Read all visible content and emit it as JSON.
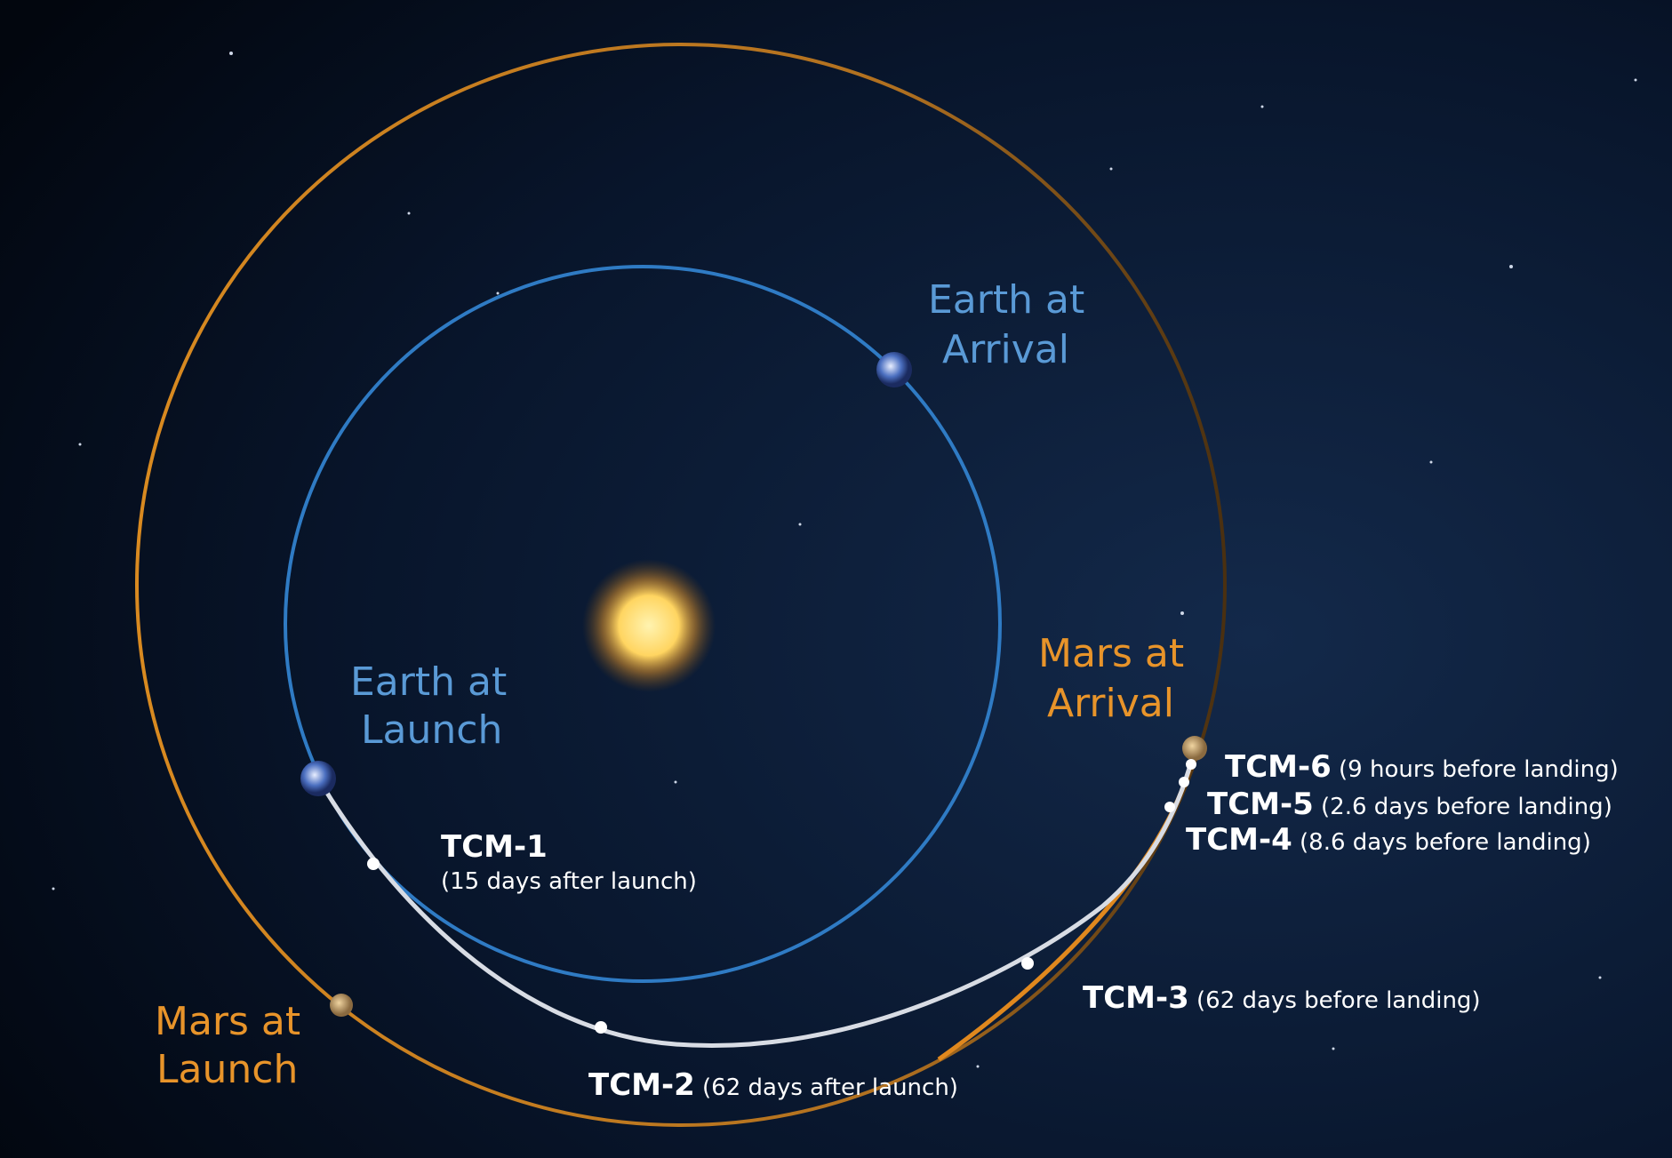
{
  "labels": {
    "earth_arrival": [
      "Earth at",
      "Arrival"
    ],
    "earth_launch": [
      "Earth at",
      "Launch"
    ],
    "mars_arrival": [
      "Mars at",
      "Arrival"
    ],
    "mars_launch": [
      "Mars at",
      "Launch"
    ]
  },
  "tcm": [
    {
      "name": "TCM-1",
      "detail": "(15 days after launch)"
    },
    {
      "name": "TCM-2",
      "detail": "(62 days after launch)"
    },
    {
      "name": "TCM-3",
      "detail": "(62 days before landing)"
    },
    {
      "name": "TCM-4",
      "detail": "(8.6 days before landing)"
    },
    {
      "name": "TCM-5",
      "detail": "(2.6 days before landing)"
    },
    {
      "name": "TCM-6",
      "detail": "(9 hours before landing)"
    }
  ]
}
